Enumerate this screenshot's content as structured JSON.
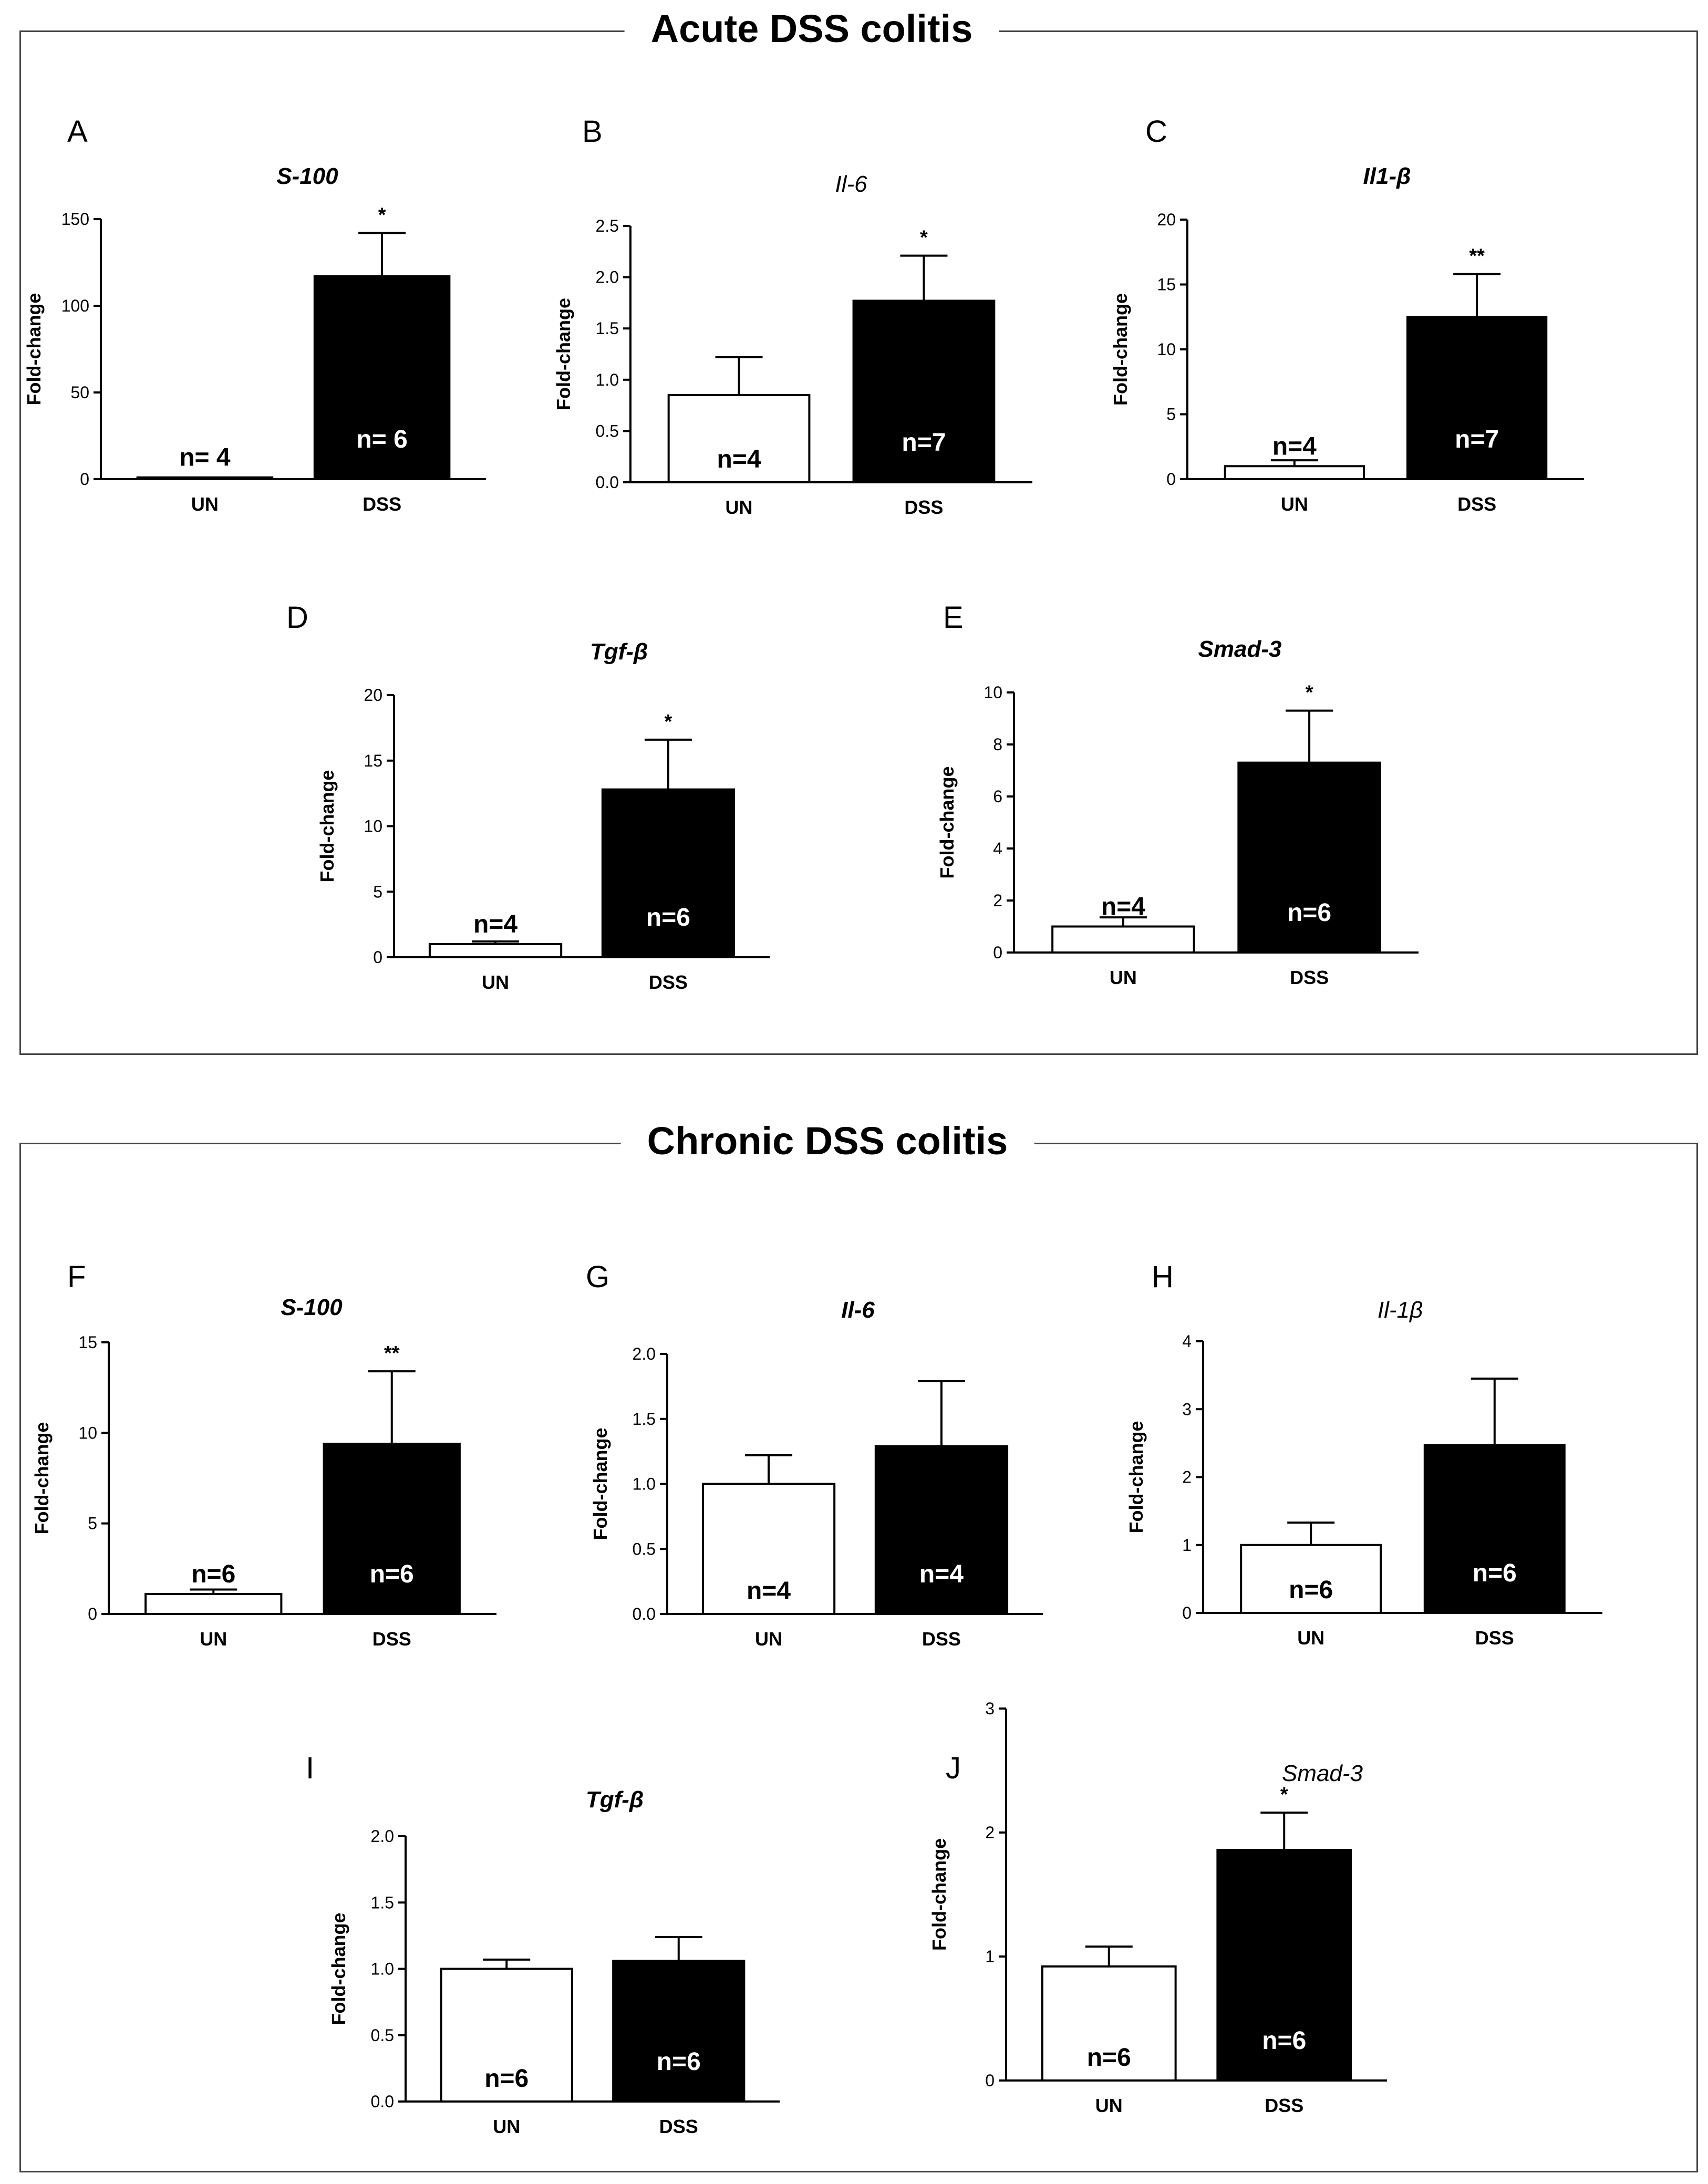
{
  "sections": [
    {
      "title": "Acute DSS colitis"
    },
    {
      "title": "Chronic DSS colitis"
    }
  ],
  "colors": {
    "un_fill": "#ffffff",
    "dss_fill": "#000000",
    "axis": "#000000"
  },
  "chart_data": [
    {
      "type": "bar",
      "panel": "A",
      "title": "S-100",
      "title_style": "bold-italic",
      "ylabel": "Fold-change",
      "categories": [
        "UN",
        "DSS"
      ],
      "values": [
        1,
        117
      ],
      "errors": [
        0,
        25
      ],
      "ylim": [
        0,
        150
      ],
      "yticks": [
        "0",
        "50",
        "100",
        "150"
      ],
      "n_labels": [
        "n= 4",
        "n= 6"
      ],
      "significance": [
        "",
        "*"
      ]
    },
    {
      "type": "bar",
      "panel": "B",
      "title": "Il-6",
      "title_style": "italic",
      "ylabel": "Fold-change",
      "categories": [
        "UN",
        "DSS"
      ],
      "values": [
        0.85,
        1.77
      ],
      "errors": [
        0.37,
        0.44
      ],
      "ylim": [
        0,
        2.5
      ],
      "yticks": [
        "0.0",
        "0.5",
        "1.0",
        "1.5",
        "2.0",
        "2.5"
      ],
      "n_labels": [
        "n=4",
        "n=7"
      ],
      "significance": [
        "",
        "*"
      ]
    },
    {
      "type": "bar",
      "panel": "C",
      "title": "Il1-β",
      "title_style": "bold-italic",
      "ylabel": "Fold-change",
      "categories": [
        "UN",
        "DSS"
      ],
      "values": [
        1,
        12.5
      ],
      "errors": [
        0.45,
        3.3
      ],
      "ylim": [
        0,
        20
      ],
      "yticks": [
        "0",
        "5",
        "10",
        "15",
        "20"
      ],
      "n_labels": [
        "n=4",
        "n=7"
      ],
      "significance": [
        "",
        "**"
      ]
    },
    {
      "type": "bar",
      "panel": "D",
      "title": "Tgf-β",
      "title_style": "bold-italic",
      "ylabel": "Fold-change",
      "categories": [
        "UN",
        "DSS"
      ],
      "values": [
        1,
        12.8
      ],
      "errors": [
        0.2,
        3.8
      ],
      "ylim": [
        0,
        20
      ],
      "yticks": [
        "0",
        "5",
        "10",
        "15",
        "20"
      ],
      "n_labels": [
        "n=4",
        "n=6"
      ],
      "significance": [
        "",
        "*"
      ]
    },
    {
      "type": "bar",
      "panel": "E",
      "title": "Smad-3",
      "title_style": "bold-italic",
      "ylabel": "Fold-change",
      "categories": [
        "UN",
        "DSS"
      ],
      "values": [
        1,
        7.3
      ],
      "errors": [
        0.35,
        2.0
      ],
      "ylim": [
        0,
        10
      ],
      "yticks": [
        "0",
        "2",
        "4",
        "6",
        "8",
        "10"
      ],
      "n_labels": [
        "n=4",
        "n=6"
      ],
      "significance": [
        "",
        "*"
      ]
    },
    {
      "type": "bar",
      "panel": "F",
      "title": "S-100",
      "title_style": "bold-italic",
      "ylabel": "Fold-change",
      "categories": [
        "UN",
        "DSS"
      ],
      "values": [
        1.1,
        9.4
      ],
      "errors": [
        0.25,
        4.0
      ],
      "ylim": [
        0,
        15
      ],
      "yticks": [
        "0",
        "5",
        "10",
        "15"
      ],
      "n_labels": [
        "n=6",
        "n=6"
      ],
      "significance": [
        "",
        "**"
      ]
    },
    {
      "type": "bar",
      "panel": "G",
      "title": "Il-6",
      "title_style": "bold-italic",
      "ylabel": "Fold-change",
      "categories": [
        "UN",
        "DSS"
      ],
      "values": [
        1.0,
        1.29
      ],
      "errors": [
        0.22,
        0.5
      ],
      "ylim": [
        0,
        2.0
      ],
      "yticks": [
        "0.0",
        "0.5",
        "1.0",
        "1.5",
        "2.0"
      ],
      "n_labels": [
        "n=4",
        "n=4"
      ],
      "significance": [
        "",
        ""
      ]
    },
    {
      "type": "bar",
      "panel": "H",
      "title": "Il-1β",
      "title_style": "italic",
      "ylabel": "Fold-change",
      "categories": [
        "UN",
        "DSS"
      ],
      "values": [
        1.0,
        2.47
      ],
      "errors": [
        0.33,
        0.98
      ],
      "ylim": [
        0,
        4
      ],
      "yticks": [
        "0",
        "1",
        "2",
        "3",
        "4"
      ],
      "n_labels": [
        "n=6",
        "n=6"
      ],
      "significance": [
        "",
        ""
      ]
    },
    {
      "type": "bar",
      "panel": "I",
      "title": "Tgf-β",
      "title_style": "bold-italic",
      "ylabel": "Fold-change",
      "categories": [
        "UN",
        "DSS"
      ],
      "values": [
        1.0,
        1.06
      ],
      "errors": [
        0.07,
        0.18
      ],
      "ylim": [
        0,
        2.0
      ],
      "yticks": [
        "0.0",
        "0.5",
        "1.0",
        "1.5",
        "2.0"
      ],
      "n_labels": [
        "n=6",
        "n=6"
      ],
      "significance": [
        "",
        ""
      ]
    },
    {
      "type": "bar",
      "panel": "J",
      "title": "Smad-3",
      "title_style": "italic",
      "ylabel": "Fold-change",
      "categories": [
        "UN",
        "DSS"
      ],
      "values": [
        0.92,
        1.86
      ],
      "errors": [
        0.16,
        0.3
      ],
      "ylim": [
        0,
        3
      ],
      "yticks": [
        "0",
        "1",
        "2",
        "3"
      ],
      "n_labels": [
        "n=6",
        "n=6"
      ],
      "significance": [
        "",
        "*"
      ]
    }
  ]
}
